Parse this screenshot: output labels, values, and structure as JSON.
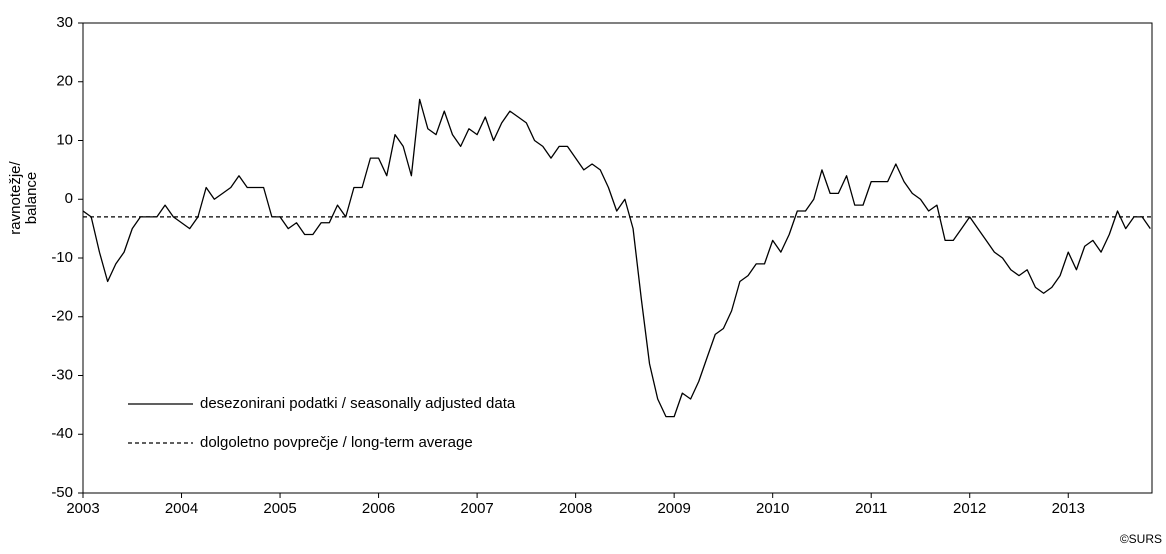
{
  "chart_data": {
    "type": "line",
    "ylabel": [
      "ravnotežje/",
      "balance"
    ],
    "credit": "©SURS",
    "xlim": [
      2003,
      2013.85
    ],
    "xticks": [
      2003,
      2004,
      2005,
      2006,
      2007,
      2008,
      2009,
      2010,
      2011,
      2012,
      2013
    ],
    "ylim": [
      -50,
      30
    ],
    "yticks": [
      -50,
      -40,
      -30,
      -20,
      -10,
      0,
      10,
      20,
      30
    ],
    "legend": "lower-left",
    "series": [
      {
        "name": "desezonirani podatki / seasonally adjusted data",
        "color": "#000000",
        "x": [
          2003,
          2003.083,
          2003.167,
          2003.25,
          2003.333,
          2003.417,
          2003.5,
          2003.583,
          2003.667,
          2003.75,
          2003.833,
          2003.917,
          2004,
          2004.083,
          2004.167,
          2004.25,
          2004.333,
          2004.417,
          2004.5,
          2004.583,
          2004.667,
          2004.75,
          2004.833,
          2004.917,
          2005,
          2005.083,
          2005.167,
          2005.25,
          2005.333,
          2005.417,
          2005.5,
          2005.583,
          2005.667,
          2005.75,
          2005.833,
          2005.917,
          2006,
          2006.083,
          2006.167,
          2006.25,
          2006.333,
          2006.417,
          2006.5,
          2006.583,
          2006.667,
          2006.75,
          2006.833,
          2006.917,
          2007,
          2007.083,
          2007.167,
          2007.25,
          2007.333,
          2007.417,
          2007.5,
          2007.583,
          2007.667,
          2007.75,
          2007.833,
          2007.917,
          2008,
          2008.083,
          2008.167,
          2008.25,
          2008.333,
          2008.417,
          2008.5,
          2008.583,
          2008.667,
          2008.75,
          2008.833,
          2008.917,
          2009,
          2009.083,
          2009.167,
          2009.25,
          2009.333,
          2009.417,
          2009.5,
          2009.583,
          2009.667,
          2009.75,
          2009.833,
          2009.917,
          2010,
          2010.083,
          2010.167,
          2010.25,
          2010.333,
          2010.417,
          2010.5,
          2010.583,
          2010.667,
          2010.75,
          2010.833,
          2010.917,
          2011,
          2011.083,
          2011.167,
          2011.25,
          2011.333,
          2011.417,
          2011.5,
          2011.583,
          2011.667,
          2011.75,
          2011.833,
          2011.917,
          2012,
          2012.083,
          2012.167,
          2012.25,
          2012.333,
          2012.417,
          2012.5,
          2012.583,
          2012.667,
          2012.75,
          2012.833,
          2012.917,
          2013,
          2013.083,
          2013.167,
          2013.25,
          2013.333,
          2013.417,
          2013.5,
          2013.583,
          2013.667,
          2013.75,
          2013.833
        ],
        "values": [
          -2,
          -3,
          -9,
          -14,
          -11,
          -9,
          -5,
          -3,
          -3,
          -3,
          -1,
          -3,
          -4,
          -5,
          -3,
          2,
          0,
          1,
          2,
          4,
          2,
          2,
          2,
          -3,
          -3,
          -5,
          -4,
          -6,
          -6,
          -4,
          -4,
          -1,
          -3,
          2,
          2,
          7,
          7,
          4,
          11,
          9,
          4,
          17,
          12,
          11,
          15,
          11,
          9,
          12,
          11,
          14,
          10,
          13,
          15,
          14,
          13,
          10,
          9,
          7,
          9,
          9,
          7,
          5,
          6,
          5,
          2,
          -2,
          0,
          -5,
          -17,
          -28,
          -34,
          -37,
          -37,
          -33,
          -34,
          -31,
          -27,
          -23,
          -22,
          -19,
          -14,
          -13,
          -11,
          -11,
          -7,
          -9,
          -6,
          -2,
          -2,
          0,
          5,
          1,
          1,
          4,
          -1,
          -1,
          3,
          3,
          3,
          6,
          3,
          1,
          0,
          -2,
          -1,
          -7,
          -7,
          -5,
          -3,
          -5,
          -7,
          -9,
          -10,
          -12,
          -13,
          -12,
          -15,
          -16,
          -15,
          -13,
          -9,
          -12,
          -8,
          -7,
          -9,
          -6,
          -2,
          -5,
          -3,
          -3,
          -5
        ]
      }
    ],
    "average": {
      "name": "dolgoletno povprečje / long-term average",
      "value": -3,
      "color": "#000000",
      "dashed": true
    }
  }
}
